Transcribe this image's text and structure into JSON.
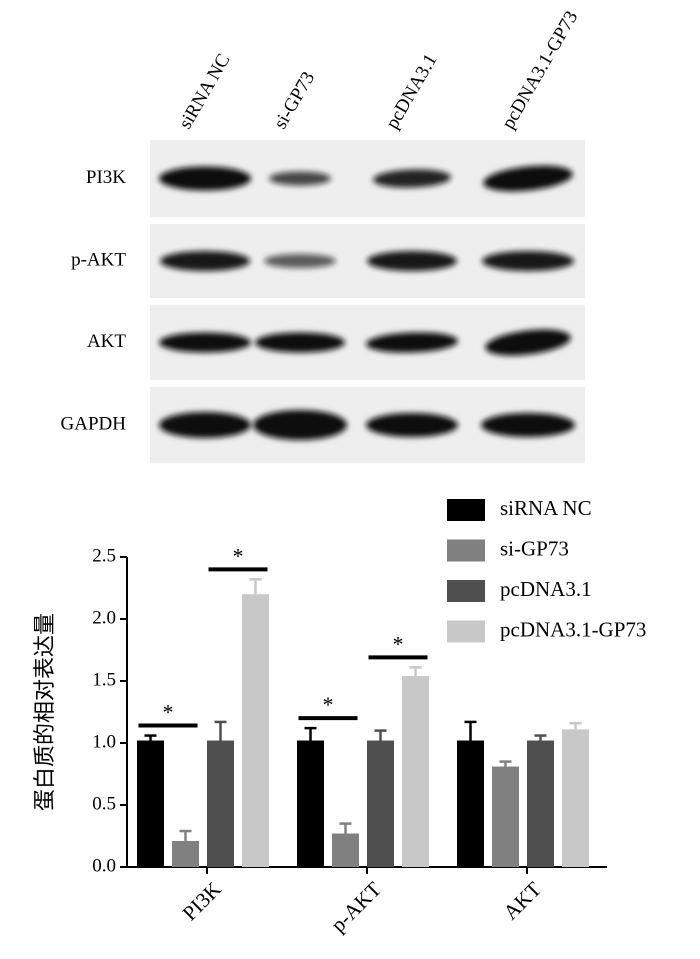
{
  "blot": {
    "lanes": [
      "siRNA NC",
      "si-GP73",
      "pcDNA3.1",
      "pcDNA3.1-GP73"
    ],
    "rows": [
      "PI3K",
      "p-AKT",
      "AKT",
      "GAPDH"
    ]
  },
  "chart_data": {
    "type": "bar",
    "ylabel": "蛋白质的相对表达量",
    "categories": [
      "PI3K",
      "p-AKT",
      "AKT"
    ],
    "series": [
      {
        "name": "siRNA NC",
        "color": "#000000",
        "values": [
          1.02,
          1.02,
          1.02
        ],
        "errors": [
          0.04,
          0.1,
          0.15
        ]
      },
      {
        "name": "si-GP73",
        "color": "#808080",
        "values": [
          0.21,
          0.27,
          0.81
        ],
        "errors": [
          0.08,
          0.08,
          0.04
        ]
      },
      {
        "name": "pcDNA3.1",
        "color": "#4f4f4f",
        "values": [
          1.02,
          1.02,
          1.02
        ],
        "errors": [
          0.15,
          0.08,
          0.04
        ]
      },
      {
        "name": "pcDNA3.1-GP73",
        "color": "#c8c8c8",
        "values": [
          2.2,
          1.54,
          1.11
        ],
        "errors": [
          0.12,
          0.07,
          0.05
        ]
      }
    ],
    "ylim": [
      0,
      2.5
    ],
    "yticks": [
      {
        "value": 0,
        "label": "0.0"
      },
      0.5,
      {
        "value": 1,
        "label": "1.0"
      },
      1.5,
      {
        "value": 2,
        "label": "2.0"
      },
      2.5
    ],
    "annotations": [
      {
        "text": "*",
        "category": "PI3K",
        "between": [
          "siRNA NC",
          "si-GP73"
        ]
      },
      {
        "text": "*",
        "category": "PI3K",
        "between": [
          "pcDNA3.1",
          "pcDNA3.1-GP73"
        ]
      },
      {
        "text": "*",
        "category": "p-AKT",
        "between": [
          "siRNA NC",
          "si-GP73"
        ]
      },
      {
        "text": "*",
        "category": "p-AKT",
        "between": [
          "pcDNA3.1",
          "pcDNA3.1-GP73"
        ]
      }
    ]
  }
}
